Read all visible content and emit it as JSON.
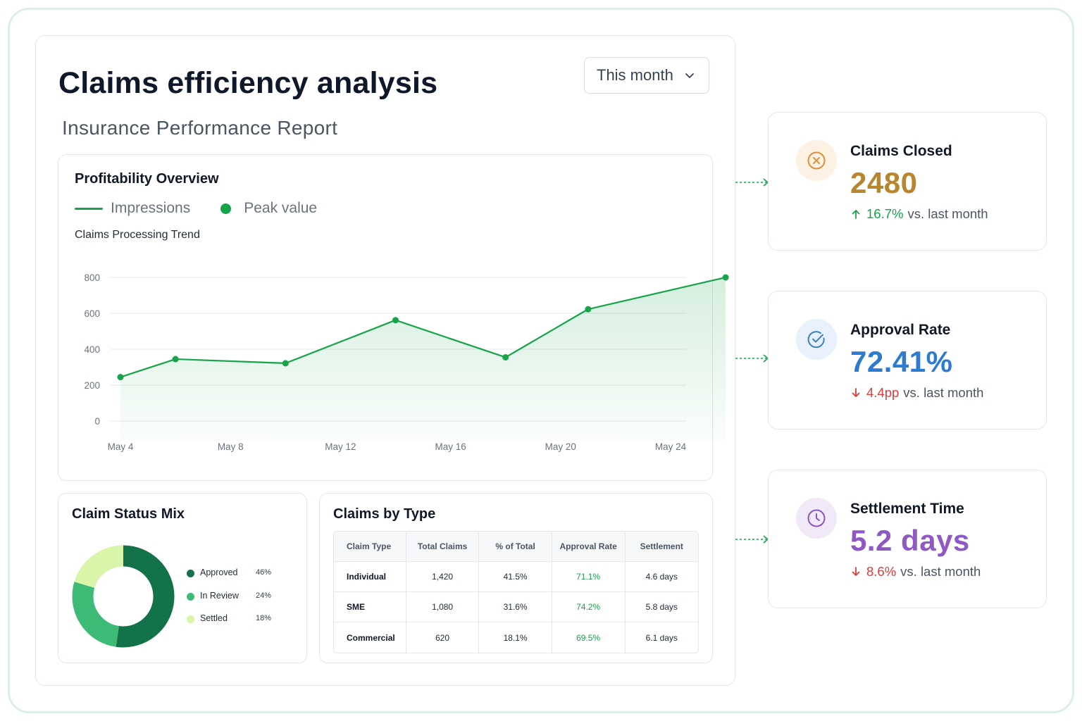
{
  "page": {
    "title": "Claims efficiency analysis",
    "subtitle": "Insurance Performance Report",
    "period_select": {
      "value": "This month",
      "icon": "chevron-down-icon"
    }
  },
  "profitability": {
    "title": "Profitability Overview",
    "legend": {
      "line_label": "Impressions",
      "dot_label": "Peak value"
    },
    "subtitle": "Claims Processing Trend"
  },
  "chart_data": {
    "type": "area",
    "title": "Claims Processing Trend",
    "x_ticks": [
      "May 4",
      "May 8",
      "May 12",
      "May 16",
      "May 20",
      "May 24"
    ],
    "y_ticks": [
      "0",
      "200",
      "400",
      "600",
      "800"
    ],
    "ylim": [
      0,
      800
    ],
    "grid": true,
    "series": [
      {
        "name": "Impressions",
        "x": [
          "May 4",
          "May 6",
          "May 10",
          "May 14",
          "May 18",
          "May 21",
          "May 26"
        ],
        "values": [
          245,
          345,
          322,
          562,
          355,
          623,
          800
        ]
      }
    ],
    "colors": {
      "line": "#16a34a",
      "area": "#16a34a"
    }
  },
  "claim_status": {
    "title": "Claim Status Mix",
    "items": [
      {
        "label": "Approved",
        "percent": "46%",
        "value": 46,
        "color": "#14724a"
      },
      {
        "label": "In Review",
        "percent": "24%",
        "value": 24,
        "color": "#3dba76"
      },
      {
        "label": "Settled",
        "percent": "18%",
        "value": 18,
        "color": "#d9f5a9"
      }
    ]
  },
  "claims_by_type": {
    "title": "Claims by Type",
    "columns": [
      "Claim Type",
      "Total Claims",
      "% of Total",
      "Approval Rate",
      "Settlement"
    ],
    "rows": [
      {
        "type": "Individual",
        "total": "1,420",
        "share": "41.5%",
        "approval": "71.1%",
        "settlement": "4.6 days"
      },
      {
        "type": "SME",
        "total": "1,080",
        "share": "31.6%",
        "approval": "74.2%",
        "settlement": "5.8 days"
      },
      {
        "type": "Commercial",
        "total": "620",
        "share": "18.1%",
        "approval": "69.5%",
        "settlement": "6.1 days"
      }
    ]
  },
  "kpis": [
    {
      "label": "Claims Closed",
      "value": "2480",
      "change": "16.7%",
      "direction": "up",
      "suffix": "vs. last month",
      "icon": "x-circle-icon",
      "value_color": "#b8862c",
      "change_color": "#16a34a",
      "icon_bg": "#fdf1e4",
      "icon_color": "#e0903a"
    },
    {
      "label": "Approval Rate",
      "value": "72.41%",
      "change": "4.4pp",
      "direction": "down",
      "suffix": "vs. last month",
      "icon": "check-circle-icon",
      "value_color": "#2d7bd1",
      "change_color": "#dc3b3b",
      "icon_bg": "#e8f1fb",
      "icon_color": "#3b82c4"
    },
    {
      "label": "Settlement Time",
      "value": "5.2 days",
      "change": "8.6%",
      "direction": "down",
      "suffix": "vs. last month",
      "icon": "clock-icon",
      "value_color": "#9058c4",
      "change_color": "#dc3b3b",
      "icon_bg": "#f1e8f8",
      "icon_color": "#8b55c2"
    }
  ]
}
